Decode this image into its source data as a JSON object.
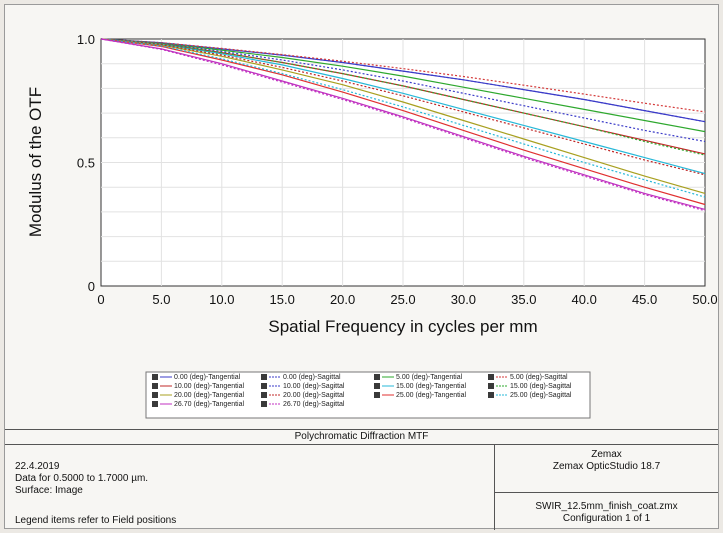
{
  "chart_data": {
    "type": "line",
    "title": "Polychromatic Diffraction MTF",
    "xlabel": "Spatial Frequency in cycles per mm",
    "ylabel": "Modulus of the OTF",
    "xlim": [
      0,
      50
    ],
    "ylim": [
      0,
      1
    ],
    "x_ticks": [
      "0",
      "5.0",
      "10.0",
      "15.0",
      "20.0",
      "25.0",
      "30.0",
      "35.0",
      "40.0",
      "45.0",
      "50.0"
    ],
    "y_ticks": [
      "0",
      "0.5",
      "1.0"
    ],
    "grid": true,
    "legend_placement": "below-plot",
    "x": [
      0,
      5,
      10,
      15,
      20,
      25,
      30,
      35,
      40,
      45,
      50
    ],
    "series": [
      {
        "name": "0.00 (deg)-Tangential",
        "color": "#3b3bc8",
        "dash": "solid",
        "values": [
          1.0,
          0.985,
          0.96,
          0.935,
          0.905,
          0.87,
          0.835,
          0.795,
          0.755,
          0.71,
          0.665
        ]
      },
      {
        "name": "0.00 (deg)-Sagittal",
        "color": "#3b3bc8",
        "dash": "dotted",
        "values": [
          1.0,
          0.985,
          0.96,
          0.935,
          0.905,
          0.87,
          0.835,
          0.795,
          0.755,
          0.71,
          0.665
        ]
      },
      {
        "name": "5.00 (deg)-Tangential",
        "color": "#2ea82e",
        "dash": "solid",
        "values": [
          1.0,
          0.983,
          0.955,
          0.925,
          0.89,
          0.85,
          0.805,
          0.76,
          0.715,
          0.67,
          0.625
        ]
      },
      {
        "name": "5.00 (deg)-Sagittal",
        "color": "#d43a3a",
        "dash": "dotted",
        "values": [
          1.0,
          0.985,
          0.962,
          0.937,
          0.91,
          0.88,
          0.848,
          0.813,
          0.777,
          0.74,
          0.705
        ]
      },
      {
        "name": "10.00 (deg)-Tangential",
        "color": "#c02828",
        "dash": "solid",
        "values": [
          1.0,
          0.98,
          0.945,
          0.905,
          0.86,
          0.81,
          0.755,
          0.7,
          0.645,
          0.59,
          0.535
        ]
      },
      {
        "name": "10.00 (deg)-Sagittal",
        "color": "#3b3bc8",
        "dash": "dotted",
        "values": [
          1.0,
          0.982,
          0.95,
          0.915,
          0.875,
          0.83,
          0.78,
          0.73,
          0.68,
          0.63,
          0.585
        ]
      },
      {
        "name": "15.00 (deg)-Tangential",
        "color": "#27b8d8",
        "dash": "solid",
        "values": [
          1.0,
          0.978,
          0.94,
          0.895,
          0.84,
          0.78,
          0.715,
          0.65,
          0.585,
          0.52,
          0.455
        ]
      },
      {
        "name": "15.00 (deg)-Sagittal",
        "color": "#2ea82e",
        "dash": "dotted",
        "values": [
          1.0,
          0.98,
          0.945,
          0.905,
          0.86,
          0.81,
          0.755,
          0.7,
          0.645,
          0.585,
          0.53
        ]
      },
      {
        "name": "20.00 (deg)-Tangential",
        "color": "#a8a020",
        "dash": "solid",
        "values": [
          1.0,
          0.975,
          0.93,
          0.875,
          0.815,
          0.745,
          0.67,
          0.595,
          0.52,
          0.445,
          0.375
        ]
      },
      {
        "name": "20.00 (deg)-Sagittal",
        "color": "#c02828",
        "dash": "dotted",
        "values": [
          1.0,
          0.977,
          0.935,
          0.885,
          0.83,
          0.77,
          0.705,
          0.64,
          0.575,
          0.51,
          0.45
        ]
      },
      {
        "name": "25.00 (deg)-Tangential",
        "color": "#e03030",
        "dash": "solid",
        "values": [
          1.0,
          0.97,
          0.915,
          0.855,
          0.785,
          0.71,
          0.63,
          0.55,
          0.475,
          0.4,
          0.33
        ]
      },
      {
        "name": "25.00 (deg)-Sagittal",
        "color": "#27b8d8",
        "dash": "dotted",
        "values": [
          1.0,
          0.972,
          0.92,
          0.86,
          0.795,
          0.725,
          0.65,
          0.575,
          0.5,
          0.43,
          0.36
        ]
      },
      {
        "name": "26.70 (deg)-Tangential",
        "color": "#c030c0",
        "dash": "solid",
        "values": [
          1.0,
          0.96,
          0.9,
          0.83,
          0.76,
          0.685,
          0.605,
          0.525,
          0.45,
          0.375,
          0.31
        ]
      },
      {
        "name": "26.70 (deg)-Sagittal",
        "color": "#c030c0",
        "dash": "dotted",
        "values": [
          1.0,
          0.958,
          0.895,
          0.825,
          0.755,
          0.68,
          0.6,
          0.52,
          0.445,
          0.37,
          0.305
        ]
      }
    ]
  },
  "info": {
    "date": "22.4.2019",
    "wavelength": "Data for 0.5000 to 1.7000 µm.",
    "surface": "Surface: Image",
    "legend_note": "Legend items refer to Field positions",
    "company": "Zemax",
    "software": "Zemax OpticStudio 18.7",
    "file": "SWIR_12.5mm_finish_coat.zmx",
    "config": "Configuration 1 of 1"
  }
}
